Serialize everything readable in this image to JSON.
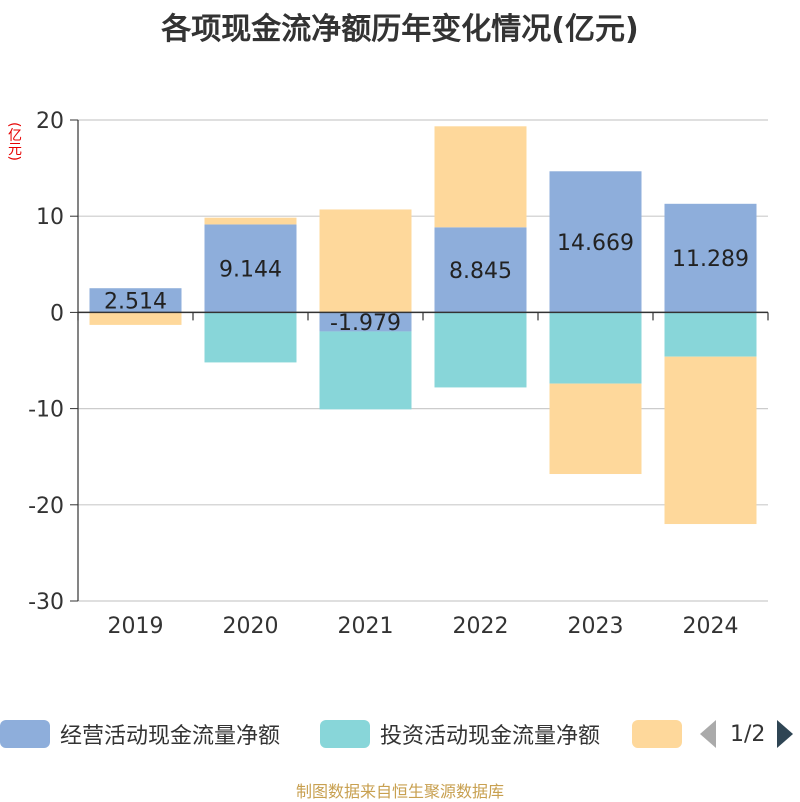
{
  "title": "各项现金流净额历年变化情况(亿元)",
  "unit_label": "(亿元)",
  "source": "制图数据来自恒生聚源数据库",
  "legend": {
    "items": [
      {
        "label": "经营活动现金流量净额",
        "color": "#8eaedb"
      },
      {
        "label": "投资活动现金流量净额",
        "color": "#88d6d9"
      },
      {
        "label": "",
        "color": "#fed89b"
      }
    ],
    "page": "1/2"
  },
  "chart_data": {
    "type": "bar",
    "stacked": true,
    "categories": [
      "2019",
      "2020",
      "2021",
      "2022",
      "2023",
      "2024"
    ],
    "ylim": [
      -30,
      20
    ],
    "yticks": [
      20,
      10,
      0,
      -10,
      -20,
      -30
    ],
    "grid": true,
    "legend_position": "bottom",
    "series": [
      {
        "name": "经营活动现金流量净额",
        "color": "#8eaedb",
        "values": [
          2.514,
          9.144,
          -1.979,
          8.845,
          14.669,
          11.289
        ],
        "labels": [
          "2.514",
          "9.144",
          "-1.979",
          "8.845",
          "14.669",
          "11.289"
        ]
      },
      {
        "name": "投资活动现金流量净额",
        "color": "#88d6d9",
        "values": [
          0,
          -5.2,
          -8.1,
          -7.8,
          -7.4,
          -4.6
        ]
      },
      {
        "name": "",
        "color": "#fed89b",
        "values": [
          -1.3,
          0.7,
          10.7,
          10.5,
          -9.4,
          -17.4
        ]
      }
    ]
  }
}
